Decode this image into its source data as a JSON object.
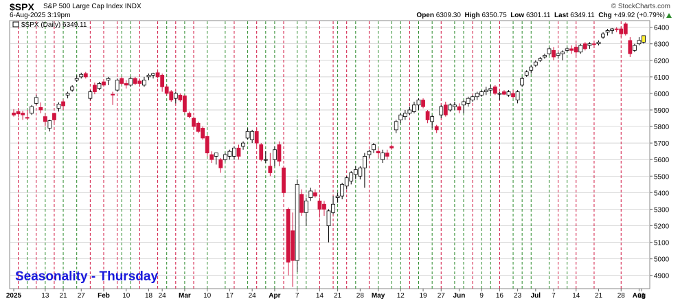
{
  "header": {
    "symbol": "$SPX",
    "description": "S&P 500 Large Cap Index  INDX",
    "brand": "© StockCharts.com",
    "datetime": "6-Aug-2025 3:19pm",
    "open_label": "Open",
    "open": "6309.30",
    "high_label": "High",
    "high": "6350.75",
    "low_label": "Low",
    "low": "6301.11",
    "last_label": "Last",
    "last": "6349.11",
    "chg_label": "Chg",
    "chg": "+49.92 (+0.79%)"
  },
  "legend": {
    "text": "$SPX (Daily) 6349.11"
  },
  "annotation": "Seasonality - Thursday",
  "chart_data": {
    "type": "candlestick",
    "y_axis_ticks": [
      4900,
      5000,
      5100,
      5200,
      5300,
      5400,
      5500,
      5600,
      5700,
      5800,
      5900,
      6000,
      6100,
      6200,
      6300,
      6400
    ],
    "ylim": [
      4820,
      6440
    ],
    "x_axis_labels": [
      "2025",
      "13",
      "21",
      "27",
      "Feb",
      "10",
      "18",
      "24",
      "Mar",
      "10",
      "17",
      "24",
      "Apr",
      "7",
      "14",
      "21",
      "28",
      "May",
      "12",
      "19",
      "27",
      "Jun",
      "9",
      "16",
      "23",
      "Jul",
      "7",
      "14",
      "21",
      "28",
      "Aug",
      "11"
    ],
    "colors": {
      "up": "#ffffff",
      "down": "#d01440",
      "neutral_down": "#000000",
      "red_line": "#d01440",
      "green_line": "#2a8a2a",
      "grid": "#c8c8c8",
      "annotation": "#1a1adc",
      "last_highlight": "#ffee33"
    },
    "vlines_red": [
      1,
      5,
      9,
      17,
      20,
      23,
      28,
      32,
      36,
      40,
      49,
      54,
      60,
      68,
      71,
      74,
      79,
      88,
      95,
      102,
      108,
      121,
      125,
      129,
      135
    ],
    "vlines_green": [
      3,
      7,
      11,
      14,
      24,
      26,
      34,
      38,
      43,
      47,
      52,
      56,
      58,
      63,
      65,
      72,
      76,
      81,
      84,
      86,
      90,
      93,
      98,
      100,
      104,
      106,
      111,
      113,
      115,
      119,
      123
    ],
    "candles": [
      {
        "o": 5882,
        "h": 5905,
        "l": 5860,
        "c": 5869
      },
      {
        "o": 5890,
        "h": 5910,
        "l": 5858,
        "c": 5876
      },
      {
        "o": 5881,
        "h": 5895,
        "l": 5840,
        "c": 5870
      },
      {
        "o": 5855,
        "h": 5900,
        "l": 5840,
        "c": 5850
      },
      {
        "o": 5880,
        "h": 5930,
        "l": 5870,
        "c": 5920
      },
      {
        "o": 5940,
        "h": 5990,
        "l": 5930,
        "c": 5975
      },
      {
        "o": 5915,
        "h": 5945,
        "l": 5880,
        "c": 5900
      },
      {
        "o": 5860,
        "h": 5880,
        "l": 5800,
        "c": 5830
      },
      {
        "o": 5790,
        "h": 5840,
        "l": 5770,
        "c": 5835
      },
      {
        "o": 5880,
        "h": 5880,
        "l": 5820,
        "c": 5840
      },
      {
        "o": 5910,
        "h": 5945,
        "l": 5890,
        "c": 5935
      },
      {
        "o": 5950,
        "h": 5965,
        "l": 5900,
        "c": 5925
      },
      {
        "o": 5990,
        "h": 6010,
        "l": 5970,
        "c": 6000
      },
      {
        "o": 6020,
        "h": 6050,
        "l": 6010,
        "c": 6040
      },
      {
        "o": 6080,
        "h": 6110,
        "l": 6070,
        "c": 6090
      },
      {
        "o": 6100,
        "h": 6125,
        "l": 6090,
        "c": 6115
      },
      {
        "o": 6120,
        "h": 6130,
        "l": 6090,
        "c": 6100
      },
      {
        "o": 5970,
        "h": 6020,
        "l": 5960,
        "c": 6010
      },
      {
        "o": 6050,
        "h": 6065,
        "l": 5995,
        "c": 6010
      },
      {
        "o": 6030,
        "h": 6070,
        "l": 6020,
        "c": 6060
      },
      {
        "o": 6070,
        "h": 6080,
        "l": 6040,
        "c": 6050
      },
      {
        "o": 6080,
        "h": 6100,
        "l": 6050,
        "c": 6090
      },
      {
        "o": 5995,
        "h": 6010,
        "l": 5930,
        "c": 5990
      },
      {
        "o": 6020,
        "h": 6090,
        "l": 6010,
        "c": 6080
      },
      {
        "o": 6090,
        "h": 6100,
        "l": 6050,
        "c": 6060
      },
      {
        "o": 6060,
        "h": 6080,
        "l": 6030,
        "c": 6050
      },
      {
        "o": 6050,
        "h": 6100,
        "l": 6040,
        "c": 6090
      },
      {
        "o": 6090,
        "h": 6100,
        "l": 6050,
        "c": 6060
      },
      {
        "o": 6075,
        "h": 6090,
        "l": 6040,
        "c": 6060
      },
      {
        "o": 6050,
        "h": 6100,
        "l": 6040,
        "c": 6080
      },
      {
        "o": 6100,
        "h": 6120,
        "l": 6080,
        "c": 6110
      },
      {
        "o": 6110,
        "h": 6125,
        "l": 6090,
        "c": 6120
      },
      {
        "o": 6125,
        "h": 6135,
        "l": 6090,
        "c": 6100
      },
      {
        "o": 6110,
        "h": 6120,
        "l": 6010,
        "c": 6040
      },
      {
        "o": 6040,
        "h": 6050,
        "l": 5990,
        "c": 6000
      },
      {
        "o": 6010,
        "h": 6020,
        "l": 5950,
        "c": 5960
      },
      {
        "o": 5970,
        "h": 6010,
        "l": 5940,
        "c": 6000
      },
      {
        "o": 5990,
        "h": 6000,
        "l": 5950,
        "c": 5960
      },
      {
        "o": 5985,
        "h": 5990,
        "l": 5880,
        "c": 5890
      },
      {
        "o": 5880,
        "h": 5890,
        "l": 5850,
        "c": 5860
      },
      {
        "o": 5850,
        "h": 5860,
        "l": 5780,
        "c": 5800
      },
      {
        "o": 5820,
        "h": 5830,
        "l": 5760,
        "c": 5770
      },
      {
        "o": 5790,
        "h": 5800,
        "l": 5720,
        "c": 5730
      },
      {
        "o": 5740,
        "h": 5750,
        "l": 5620,
        "c": 5640
      },
      {
        "o": 5630,
        "h": 5650,
        "l": 5580,
        "c": 5600
      },
      {
        "o": 5620,
        "h": 5640,
        "l": 5570,
        "c": 5640
      },
      {
        "o": 5600,
        "h": 5610,
        "l": 5520,
        "c": 5550
      },
      {
        "o": 5600,
        "h": 5640,
        "l": 5590,
        "c": 5630
      },
      {
        "o": 5620,
        "h": 5660,
        "l": 5600,
        "c": 5650
      },
      {
        "o": 5620,
        "h": 5680,
        "l": 5600,
        "c": 5670
      },
      {
        "o": 5670,
        "h": 5690,
        "l": 5600,
        "c": 5620
      },
      {
        "o": 5680,
        "h": 5710,
        "l": 5660,
        "c": 5700
      },
      {
        "o": 5730,
        "h": 5790,
        "l": 5720,
        "c": 5770
      },
      {
        "o": 5720,
        "h": 5780,
        "l": 5700,
        "c": 5770
      },
      {
        "o": 5770,
        "h": 5790,
        "l": 5680,
        "c": 5700
      },
      {
        "o": 5690,
        "h": 5700,
        "l": 5590,
        "c": 5600
      },
      {
        "o": 5600,
        "h": 5650,
        "l": 5580,
        "c": 5600
      },
      {
        "o": 5560,
        "h": 5640,
        "l": 5500,
        "c": 5520
      },
      {
        "o": 5600,
        "h": 5680,
        "l": 5560,
        "c": 5660
      },
      {
        "o": 5690,
        "h": 5710,
        "l": 5560,
        "c": 5590
      },
      {
        "o": 5550,
        "h": 5560,
        "l": 5380,
        "c": 5400
      },
      {
        "o": 5300,
        "h": 5310,
        "l": 4900,
        "c": 4980
      },
      {
        "o": 5170,
        "h": 5280,
        "l": 4830,
        "c": 4990
      },
      {
        "o": 4990,
        "h": 5480,
        "l": 4920,
        "c": 5450
      },
      {
        "o": 5390,
        "h": 5420,
        "l": 5260,
        "c": 5280
      },
      {
        "o": 5280,
        "h": 5370,
        "l": 5200,
        "c": 5350
      },
      {
        "o": 5370,
        "h": 5430,
        "l": 5350,
        "c": 5410
      },
      {
        "o": 5400,
        "h": 5420,
        "l": 5370,
        "c": 5380
      },
      {
        "o": 5350,
        "h": 5370,
        "l": 5250,
        "c": 5300
      },
      {
        "o": 5330,
        "h": 5350,
        "l": 5260,
        "c": 5300
      },
      {
        "o": 5200,
        "h": 5300,
        "l": 5100,
        "c": 5290
      },
      {
        "o": 5280,
        "h": 5380,
        "l": 5270,
        "c": 5330
      },
      {
        "o": 5370,
        "h": 5400,
        "l": 5340,
        "c": 5380
      },
      {
        "o": 5380,
        "h": 5460,
        "l": 5360,
        "c": 5450
      },
      {
        "o": 5440,
        "h": 5500,
        "l": 5420,
        "c": 5490
      },
      {
        "o": 5470,
        "h": 5530,
        "l": 5450,
        "c": 5520
      },
      {
        "o": 5510,
        "h": 5560,
        "l": 5480,
        "c": 5540
      },
      {
        "o": 5500,
        "h": 5560,
        "l": 5480,
        "c": 5550
      },
      {
        "o": 5550,
        "h": 5640,
        "l": 5430,
        "c": 5620
      },
      {
        "o": 5630,
        "h": 5660,
        "l": 5610,
        "c": 5650
      },
      {
        "o": 5660,
        "h": 5700,
        "l": 5640,
        "c": 5690
      },
      {
        "o": 5650,
        "h": 5670,
        "l": 5610,
        "c": 5640
      },
      {
        "o": 5600,
        "h": 5660,
        "l": 5580,
        "c": 5640
      },
      {
        "o": 5640,
        "h": 5660,
        "l": 5600,
        "c": 5620
      },
      {
        "o": 5680,
        "h": 5690,
        "l": 5660,
        "c": 5670
      },
      {
        "o": 5780,
        "h": 5840,
        "l": 5760,
        "c": 5830
      },
      {
        "o": 5840,
        "h": 5880,
        "l": 5820,
        "c": 5870
      },
      {
        "o": 5860,
        "h": 5900,
        "l": 5840,
        "c": 5880
      },
      {
        "o": 5880,
        "h": 5920,
        "l": 5870,
        "c": 5900
      },
      {
        "o": 5890,
        "h": 5950,
        "l": 5880,
        "c": 5930
      },
      {
        "o": 5930,
        "h": 5970,
        "l": 5900,
        "c": 5960
      },
      {
        "o": 5960,
        "h": 5970,
        "l": 5910,
        "c": 5920
      },
      {
        "o": 5890,
        "h": 5900,
        "l": 5820,
        "c": 5840
      },
      {
        "o": 5830,
        "h": 5870,
        "l": 5790,
        "c": 5860
      },
      {
        "o": 5800,
        "h": 5810,
        "l": 5760,
        "c": 5780
      },
      {
        "o": 5870,
        "h": 5930,
        "l": 5850,
        "c": 5920
      },
      {
        "o": 5930,
        "h": 5950,
        "l": 5860,
        "c": 5870
      },
      {
        "o": 5900,
        "h": 5940,
        "l": 5890,
        "c": 5930
      },
      {
        "o": 5920,
        "h": 5950,
        "l": 5900,
        "c": 5930
      },
      {
        "o": 5920,
        "h": 5940,
        "l": 5880,
        "c": 5900
      },
      {
        "o": 5930,
        "h": 5960,
        "l": 5880,
        "c": 5950
      },
      {
        "o": 5940,
        "h": 5980,
        "l": 5920,
        "c": 5970
      },
      {
        "o": 5960,
        "h": 5990,
        "l": 5950,
        "c": 5980
      },
      {
        "o": 5980,
        "h": 6010,
        "l": 5960,
        "c": 6000
      },
      {
        "o": 5990,
        "h": 6020,
        "l": 5980,
        "c": 6010
      },
      {
        "o": 6010,
        "h": 6040,
        "l": 5990,
        "c": 6020
      },
      {
        "o": 6020,
        "h": 6050,
        "l": 6000,
        "c": 6030
      },
      {
        "o": 6040,
        "h": 6050,
        "l": 5990,
        "c": 6000
      },
      {
        "o": 5995,
        "h": 6010,
        "l": 5960,
        "c": 6000
      },
      {
        "o": 6010,
        "h": 6020,
        "l": 5990,
        "c": 5995
      },
      {
        "o": 5990,
        "h": 6020,
        "l": 5980,
        "c": 6010
      },
      {
        "o": 6000,
        "h": 6020,
        "l": 5970,
        "c": 5980
      },
      {
        "o": 5960,
        "h": 6020,
        "l": 5940,
        "c": 6010
      },
      {
        "o": 6050,
        "h": 6100,
        "l": 6040,
        "c": 6090
      },
      {
        "o": 6110,
        "h": 6140,
        "l": 6100,
        "c": 6130
      },
      {
        "o": 6140,
        "h": 6170,
        "l": 6120,
        "c": 6160
      },
      {
        "o": 6170,
        "h": 6200,
        "l": 6160,
        "c": 6190
      },
      {
        "o": 6200,
        "h": 6220,
        "l": 6190,
        "c": 6210
      },
      {
        "o": 6220,
        "h": 6240,
        "l": 6210,
        "c": 6230
      },
      {
        "o": 6240,
        "h": 6280,
        "l": 6230,
        "c": 6270
      },
      {
        "o": 6260,
        "h": 6280,
        "l": 6200,
        "c": 6220
      },
      {
        "o": 6230,
        "h": 6250,
        "l": 6210,
        "c": 6240
      },
      {
        "o": 6240,
        "h": 6260,
        "l": 6200,
        "c": 6250
      },
      {
        "o": 6260,
        "h": 6280,
        "l": 6250,
        "c": 6270
      },
      {
        "o": 6270,
        "h": 6290,
        "l": 6240,
        "c": 6260
      },
      {
        "o": 6280,
        "h": 6300,
        "l": 6230,
        "c": 6250
      },
      {
        "o": 6250,
        "h": 6300,
        "l": 6240,
        "c": 6290
      },
      {
        "o": 6300,
        "h": 6310,
        "l": 6260,
        "c": 6270
      },
      {
        "o": 6290,
        "h": 6310,
        "l": 6270,
        "c": 6300
      },
      {
        "o": 6300,
        "h": 6310,
        "l": 6280,
        "c": 6295
      },
      {
        "o": 6300,
        "h": 6320,
        "l": 6290,
        "c": 6310
      },
      {
        "o": 6340,
        "h": 6370,
        "l": 6330,
        "c": 6360
      },
      {
        "o": 6370,
        "h": 6390,
        "l": 6350,
        "c": 6380
      },
      {
        "o": 6380,
        "h": 6395,
        "l": 6360,
        "c": 6390
      },
      {
        "o": 6390,
        "h": 6400,
        "l": 6370,
        "c": 6385
      },
      {
        "o": 6390,
        "h": 6400,
        "l": 6340,
        "c": 6360
      },
      {
        "o": 6420,
        "h": 6430,
        "l": 6350,
        "c": 6360
      },
      {
        "o": 6320,
        "h": 6340,
        "l": 6220,
        "c": 6240
      },
      {
        "o": 6260,
        "h": 6300,
        "l": 6250,
        "c": 6290
      },
      {
        "o": 6300,
        "h": 6340,
        "l": 6290,
        "c": 6320
      },
      {
        "o": 6309.3,
        "h": 6350.75,
        "l": 6301.11,
        "c": 6349.11
      }
    ]
  }
}
